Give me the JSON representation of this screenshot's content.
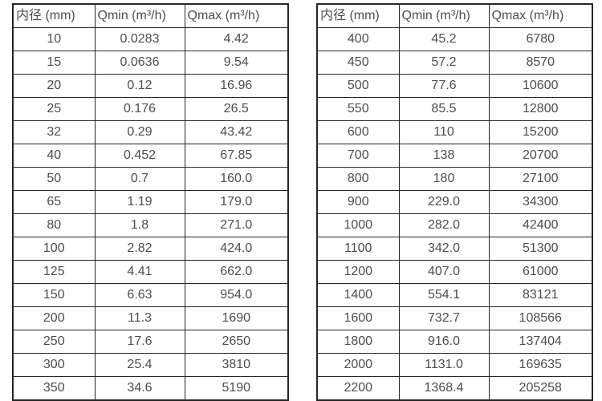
{
  "colors": {
    "background": "#ffffff",
    "border": "#262626",
    "text": "#4d4d4d"
  },
  "chart_data": [
    {
      "type": "table",
      "title": "",
      "columns": [
        "内径 (mm)",
        "Qmin (m³/h)",
        "Qmax (m³/h)"
      ],
      "rows": [
        [
          "10",
          "0.0283",
          "4.42"
        ],
        [
          "15",
          "0.0636",
          "9.54"
        ],
        [
          "20",
          "0.12",
          "16.96"
        ],
        [
          "25",
          "0.176",
          "26.5"
        ],
        [
          "32",
          "0.29",
          "43.42"
        ],
        [
          "40",
          "0.452",
          "67.85"
        ],
        [
          "50",
          "0.7",
          "160.0"
        ],
        [
          "65",
          "1.19",
          "179.0"
        ],
        [
          "80",
          "1.8",
          "271.0"
        ],
        [
          "100",
          "2.82",
          "424.0"
        ],
        [
          "125",
          "4.41",
          "662.0"
        ],
        [
          "150",
          "6.63",
          "954.0"
        ],
        [
          "200",
          "11.3",
          "1690"
        ],
        [
          "250",
          "17.6",
          "2650"
        ],
        [
          "300",
          "25.4",
          "3810"
        ],
        [
          "350",
          "34.6",
          "5190"
        ]
      ]
    },
    {
      "type": "table",
      "title": "",
      "columns": [
        "内径 (mm)",
        "Qmin (m³/h)",
        "Qmax (m³/h)"
      ],
      "rows": [
        [
          "400",
          "45.2",
          "6780"
        ],
        [
          "450",
          "57.2",
          "8570"
        ],
        [
          "500",
          "77.6",
          "10600"
        ],
        [
          "550",
          "85.5",
          "12800"
        ],
        [
          "600",
          "110",
          "15200"
        ],
        [
          "700",
          "138",
          "20700"
        ],
        [
          "800",
          "180",
          "27100"
        ],
        [
          "900",
          "229.0",
          "34300"
        ],
        [
          "1000",
          "282.0",
          "42400"
        ],
        [
          "1100",
          "342.0",
          "51300"
        ],
        [
          "1200",
          "407.0",
          "61000"
        ],
        [
          "1400",
          "554.1",
          "83121"
        ],
        [
          "1600",
          "732.7",
          "108566"
        ],
        [
          "1800",
          "916.0",
          "137404"
        ],
        [
          "2000",
          "1131.0",
          "169635"
        ],
        [
          "2200",
          "1368.4",
          "205258"
        ]
      ]
    }
  ]
}
